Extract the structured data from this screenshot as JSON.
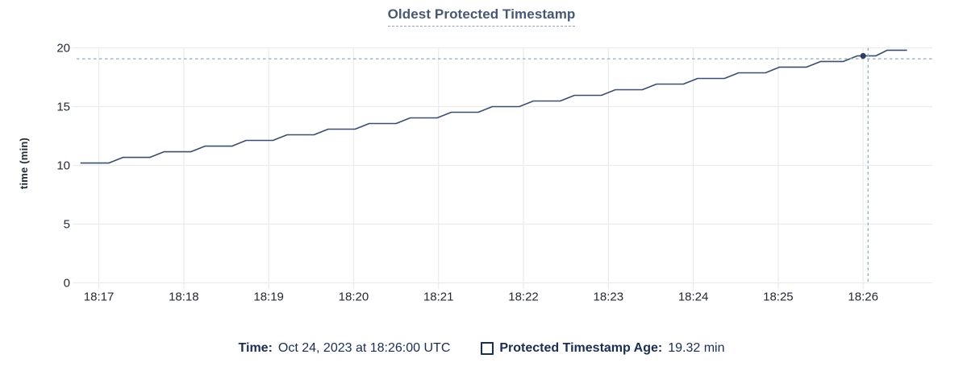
{
  "header": {
    "title": "Oldest Protected Timestamp"
  },
  "y_axis": {
    "label": "time (min)"
  },
  "legend": {
    "time_label": "Time:",
    "time_value": "Oct 24, 2023 at 18:26:00 UTC",
    "series_label": "Protected Timestamp Age:",
    "series_value": "19.32 min"
  },
  "chart_data": {
    "type": "line",
    "title": "Oldest Protected Timestamp",
    "xlabel": "",
    "ylabel": "time (min)",
    "ylim": [
      0,
      20
    ],
    "y_ticks": [
      0,
      5,
      10,
      15,
      20
    ],
    "x_ticks": [
      "18:17",
      "18:18",
      "18:19",
      "18:20",
      "18:21",
      "18:22",
      "18:23",
      "18:24",
      "18:25",
      "18:26"
    ],
    "x_tick_interval_seconds": 60,
    "xlim_seconds_from_1817": [
      -15.7,
      588.9
    ],
    "grid": true,
    "legend_position": "bottom",
    "series": [
      {
        "name": "Protected Timestamp Age",
        "unit": "min",
        "points_t_v": [
          [
            -13,
            10.2
          ],
          [
            7,
            10.2
          ],
          [
            17,
            10.68
          ],
          [
            36,
            10.68
          ],
          [
            46,
            11.16
          ],
          [
            65,
            11.16
          ],
          [
            75,
            11.64
          ],
          [
            94,
            11.64
          ],
          [
            104,
            12.12
          ],
          [
            123,
            12.12
          ],
          [
            133,
            12.6
          ],
          [
            152,
            12.6
          ],
          [
            162,
            13.08
          ],
          [
            181,
            13.08
          ],
          [
            191,
            13.56
          ],
          [
            210,
            13.56
          ],
          [
            220,
            14.04
          ],
          [
            239,
            14.04
          ],
          [
            249,
            14.52
          ],
          [
            268,
            14.52
          ],
          [
            278,
            15.0
          ],
          [
            297,
            15.0
          ],
          [
            307,
            15.48
          ],
          [
            326,
            15.48
          ],
          [
            336,
            15.96
          ],
          [
            355,
            15.96
          ],
          [
            365,
            16.44
          ],
          [
            384,
            16.44
          ],
          [
            394,
            16.92
          ],
          [
            413,
            16.92
          ],
          [
            423,
            17.4
          ],
          [
            442,
            17.4
          ],
          [
            452,
            17.88
          ],
          [
            471,
            17.88
          ],
          [
            481,
            18.36
          ],
          [
            500,
            18.36
          ],
          [
            510,
            18.84
          ],
          [
            526,
            18.84
          ],
          [
            536,
            19.32
          ],
          [
            549,
            19.32
          ],
          [
            557,
            19.8
          ],
          [
            571,
            19.8
          ]
        ]
      }
    ],
    "hover_point": {
      "t_seconds": 540,
      "value_min": 19.32,
      "time_label": "Oct 24, 2023 at 18:26:00 UTC"
    },
    "crosshair": {
      "t_seconds": 543.5,
      "value_min": 19.07
    },
    "colors": {
      "line": "#3c4d6d",
      "dot": "#2e3f63",
      "crosshair": "#9db0c3",
      "grid": "#ececec",
      "tick_text": "#242a35",
      "title": "#475872",
      "legend_text": "#1a2d52",
      "background": "#ffffff"
    }
  }
}
